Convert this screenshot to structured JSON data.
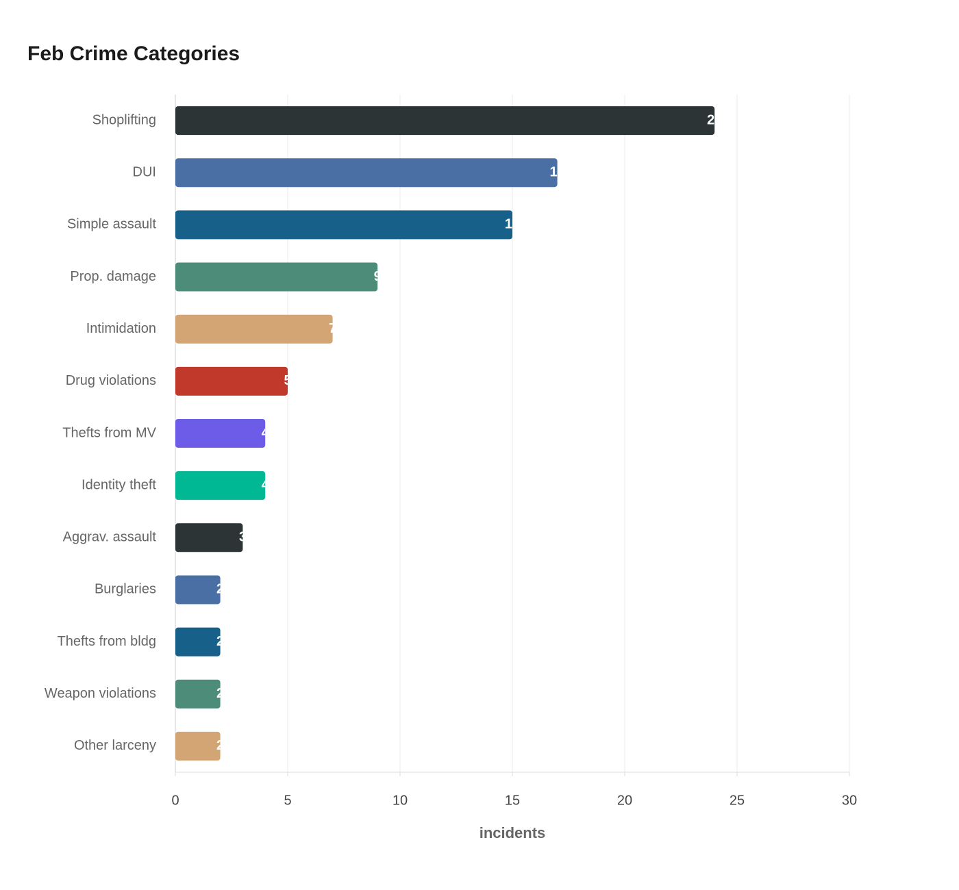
{
  "chart_data": {
    "type": "hbar",
    "title": "Feb Crime Categories",
    "x_label": "incidents",
    "categories": [
      "Shoplifting",
      "DUI",
      "Simple assault",
      "Prop. damage",
      "Intimidation",
      "Drug violations",
      "Thefts from MV",
      "Identity theft",
      "Aggrav. assault",
      "Burglaries",
      "Thefts from bldg",
      "Weapon violations",
      "Other larceny"
    ],
    "values": [
      24,
      17,
      15,
      9,
      7,
      5,
      4,
      4,
      3,
      2,
      2,
      2,
      2
    ],
    "colors": [
      "#2d3436",
      "#4a6fa5",
      "#17608a",
      "#4e8c7a",
      "#d4a574",
      "#c0392b",
      "#6c5ce7",
      "#00b894",
      "#2d3436",
      "#4a6fa5",
      "#17608a",
      "#4e8c7a",
      "#d4a574"
    ],
    "xlim": [
      0,
      30
    ],
    "xticks": [
      0,
      5,
      10,
      15,
      20,
      25,
      30
    ],
    "grid": true
  }
}
